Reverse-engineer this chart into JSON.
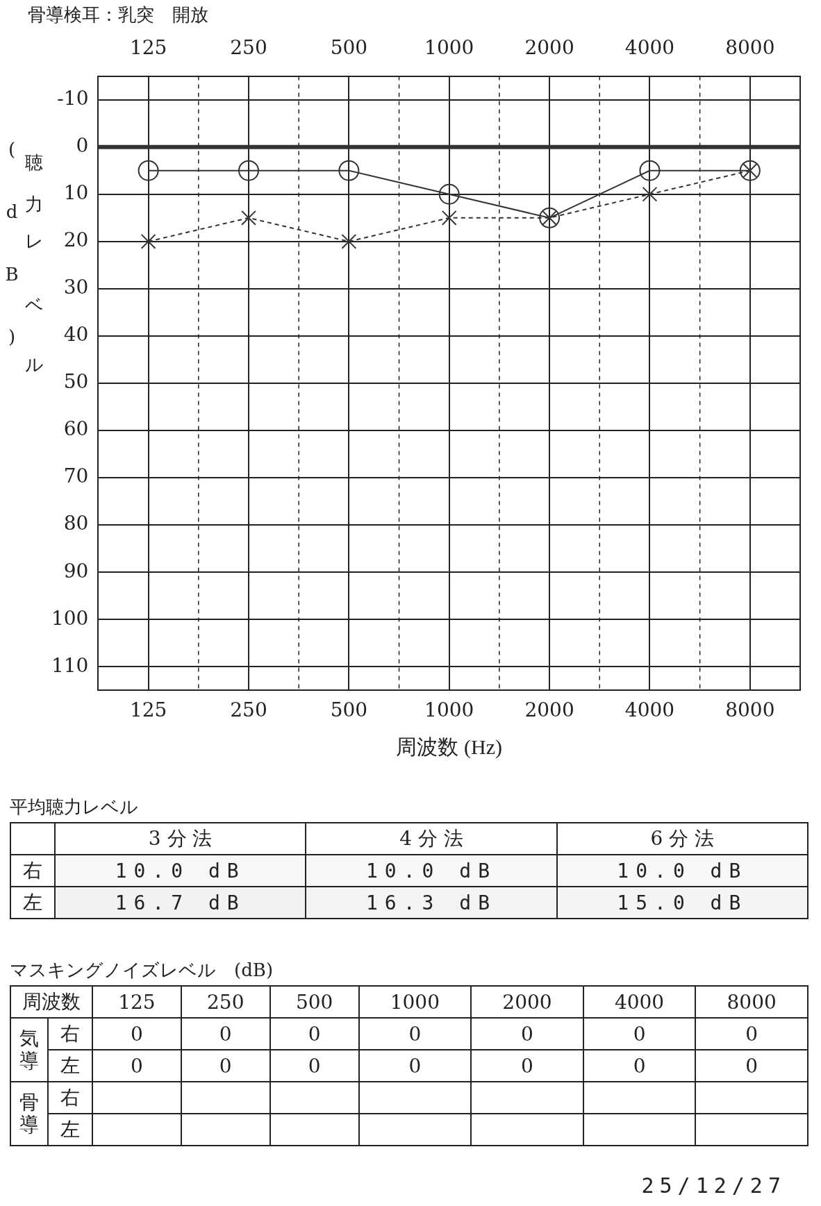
{
  "chart_data": [
    {
      "type": "line",
      "title": "骨導検耳：乳突　開放",
      "xlabel": "周波数 (Hz)",
      "ylabel": "聴力レベル (dB)",
      "categories": [
        "125",
        "250",
        "500",
        "1000",
        "2000",
        "4000",
        "8000"
      ],
      "series": [
        {
          "color": "#333333",
          "marker": "circle",
          "line_style": "solid",
          "values": [
            5,
            5,
            5,
            10,
            15,
            5,
            5
          ]
        },
        {
          "color": "#333333",
          "marker": "cross",
          "line_style": "dashed",
          "values": [
            20,
            15,
            20,
            15,
            15,
            10,
            5
          ]
        }
      ],
      "ylim": [
        115,
        -15
      ],
      "yticks": [
        -10,
        0,
        10,
        20,
        30,
        40,
        50,
        60,
        70,
        80,
        90,
        100,
        110
      ],
      "grid": true,
      "legend": false,
      "ref_lines": [
        {
          "axis": "y",
          "value": 0,
          "color": "#333333"
        }
      ]
    },
    {
      "type": "heatmap",
      "title": "平均聴力レベル",
      "categories": [
        "3 分 法",
        "4 分 法",
        "6 分 法"
      ],
      "y_categories": [
        "右",
        "左"
      ],
      "cells": [
        [
          10.0,
          10.0,
          10.0
        ],
        [
          16.7,
          16.3,
          15.0
        ]
      ],
      "cell_labels": [
        [
          "10.0 dB",
          "10.0 dB",
          "10.0 dB"
        ],
        [
          "16.7 dB",
          "16.3 dB",
          "15.0 dB"
        ]
      ]
    },
    {
      "type": "heatmap",
      "title": "マスキングノイズレベル　(dB)",
      "xlabel": "周波数",
      "categories": [
        "125",
        "250",
        "500",
        "1000",
        "2000",
        "4000",
        "8000"
      ],
      "y_categories": [
        "右",
        "左",
        "右",
        "左"
      ],
      "y2_categories": [
        "気導",
        null,
        "骨導",
        null
      ],
      "cells": [
        [
          0,
          0,
          0,
          0,
          0,
          0,
          0
        ],
        [
          0,
          0,
          0,
          0,
          0,
          0,
          0
        ],
        [
          null,
          null,
          null,
          null,
          null,
          null,
          null
        ],
        [
          null,
          null,
          null,
          null,
          null,
          null,
          null
        ]
      ],
      "cell_labels": [
        [
          "0",
          "0",
          "0",
          "0",
          "0",
          "0",
          "0"
        ],
        [
          "0",
          "0",
          "0",
          "0",
          "0",
          "0",
          "0"
        ],
        [
          null,
          null,
          null,
          null,
          null,
          null,
          null
        ],
        [
          null,
          null,
          null,
          null,
          null,
          null,
          null
        ]
      ],
      "annotations": [
        "25/12/27"
      ]
    }
  ]
}
